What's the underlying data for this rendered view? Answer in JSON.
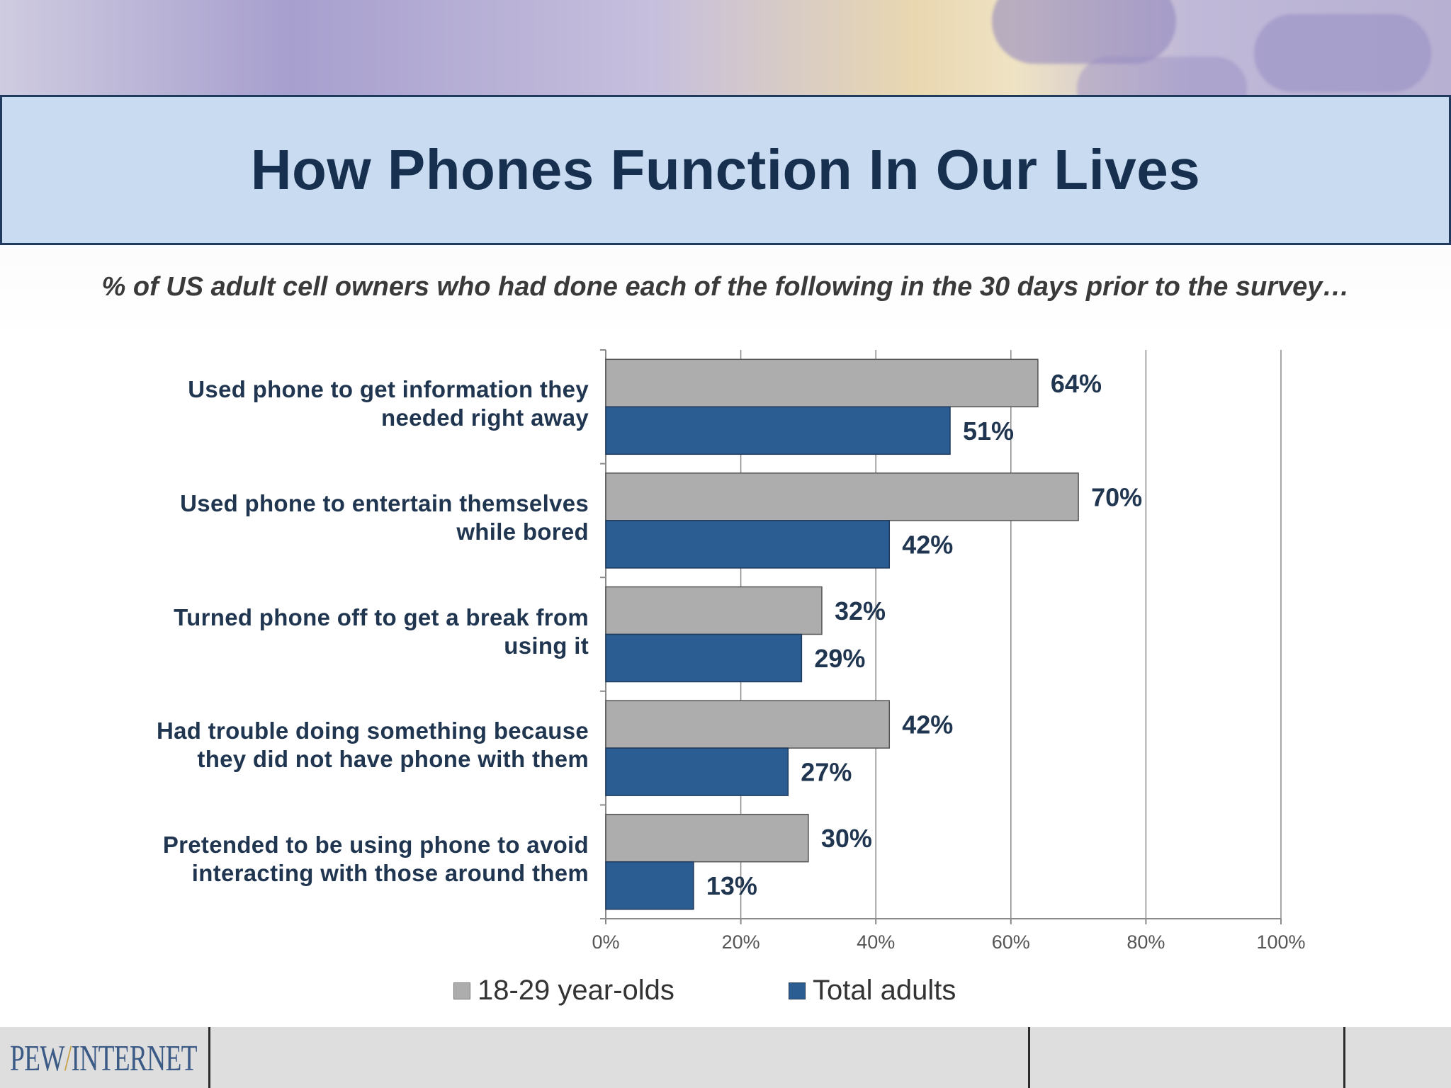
{
  "title": "How Phones Function In Our Lives",
  "subtitle": "% of US adult cell owners who had done each of the following in the 30 days prior to the survey…",
  "logo": {
    "left": "PEW",
    "slash": "/",
    "right": "INTERNET"
  },
  "colors": {
    "series_1": "#adadad",
    "series_2": "#2b5c92",
    "title_band": "#c9dbf1",
    "title_text": "#17304f"
  },
  "chart_data": {
    "type": "bar",
    "orientation": "horizontal",
    "categories": [
      [
        "Used phone to get information they",
        "needed right away"
      ],
      [
        "Used phone to entertain themselves",
        "while bored"
      ],
      [
        "Turned phone off to get a break from",
        "using it"
      ],
      [
        "Had trouble doing something because",
        "they did not have phone with them"
      ],
      [
        "Pretended to be using phone to avoid",
        "interacting with those around them"
      ]
    ],
    "series": [
      {
        "name": "18-29 year-olds",
        "values": [
          64,
          70,
          32,
          42,
          30
        ],
        "labels": [
          "64%",
          "70%",
          "32%",
          "42%",
          "30%"
        ],
        "color": "#adadad"
      },
      {
        "name": "Total adults",
        "values": [
          51,
          42,
          29,
          27,
          13
        ],
        "labels": [
          "51%",
          "42%",
          "29%",
          "27%",
          "13%"
        ],
        "color": "#2b5c92"
      }
    ],
    "xlim": [
      0,
      100
    ],
    "xticks": [
      0,
      20,
      40,
      60,
      80,
      100
    ],
    "xtick_labels": [
      "0%",
      "20%",
      "40%",
      "60%",
      "80%",
      "100%"
    ],
    "grid": true,
    "legend": "bottom"
  }
}
